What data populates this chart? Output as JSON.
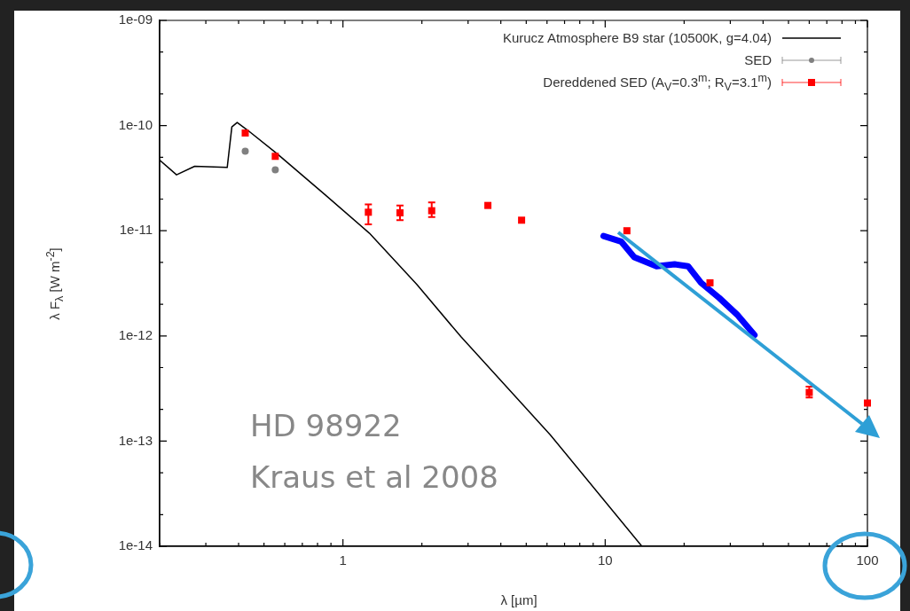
{
  "chart_data": {
    "type": "scatter",
    "xlabel": "λ [µm]",
    "ylabel": "λ F$_{λ}$ [W m$^{-2}$]",
    "log": "xy",
    "legend": "top right",
    "grid": false,
    "xlim": [
      0.2,
      100
    ],
    "xticks": [
      {
        "value": 0.2,
        "label": null
      },
      {
        "value": 0.3,
        "label": null
      },
      {
        "value": 0.4,
        "label": null
      },
      {
        "value": 0.5,
        "label": null
      },
      {
        "value": 0.6,
        "label": null
      },
      {
        "value": 0.7,
        "label": null
      },
      {
        "value": 0.8,
        "label": null
      },
      {
        "value": 0.9,
        "label": null
      },
      1,
      {
        "value": 2,
        "label": null
      },
      {
        "value": 3,
        "label": null
      },
      {
        "value": 4,
        "label": null
      },
      {
        "value": 5,
        "label": null
      },
      {
        "value": 6,
        "label": null
      },
      {
        "value": 7,
        "label": null
      },
      {
        "value": 8,
        "label": null
      },
      {
        "value": 9,
        "label": null
      },
      10,
      {
        "value": 20,
        "label": null
      },
      {
        "value": 30,
        "label": null
      },
      {
        "value": 40,
        "label": null
      },
      {
        "value": 50,
        "label": null
      },
      {
        "value": 60,
        "label": null
      },
      {
        "value": 70,
        "label": null
      },
      {
        "value": 80,
        "label": null
      },
      {
        "value": 90,
        "label": null
      },
      100
    ],
    "ylim": [
      1e-14,
      1e-09
    ],
    "yticks": [
      {
        "value": 1e-14,
        "label": "1e-14"
      },
      {
        "value": 2e-14,
        "label": null
      },
      {
        "value": 5e-14,
        "label": null
      },
      {
        "value": 1e-13,
        "label": "1e-13"
      },
      {
        "value": 2e-13,
        "label": null
      },
      {
        "value": 5e-13,
        "label": null
      },
      {
        "value": 1e-12,
        "label": "1e-12"
      },
      {
        "value": 2e-12,
        "label": null
      },
      {
        "value": 5e-12,
        "label": null
      },
      {
        "value": 1e-11,
        "label": "1e-11"
      },
      {
        "value": 2e-11,
        "label": null
      },
      {
        "value": 5e-11,
        "label": null
      },
      {
        "value": 1e-10,
        "label": "1e-10"
      },
      {
        "value": 2e-10,
        "label": null
      },
      {
        "value": 5e-10,
        "label": null
      },
      {
        "value": 1e-09,
        "label": "1e-09"
      }
    ],
    "series": [
      {
        "name": "Kurucz Atmosphere B9 star (10500K, g=4.04)",
        "type": "line",
        "color": "#000000",
        "marker": "none",
        "x": [
          0.2,
          0.232,
          0.272,
          0.362,
          0.377,
          0.395,
          0.434,
          0.561,
          0.855,
          1.26,
          1.91,
          2.82,
          6.17,
          13.8
        ],
        "values": [
          4.7e-11,
          3.4e-11,
          4.1e-11,
          4e-11,
          9.7e-11,
          1.07e-10,
          9e-11,
          5.4e-11,
          2.2e-11,
          9.5e-12,
          3.1e-12,
          9.8e-13,
          1.15e-13,
          1e-14
        ]
      },
      {
        "name": "SED",
        "color": "#808080",
        "marker": "circle",
        "x": [
          0.424,
          0.552
        ],
        "values": [
          5.7e-11,
          3.8e-11
        ]
      },
      {
        "name": "Dereddened SED (A$_{V}$=0.3$^{m}$; R$_{V}$=3.1$^{m}$)",
        "color": "#ff0000",
        "marker": "square",
        "x": [
          0.424,
          0.552,
          1.25,
          1.65,
          2.18,
          3.57,
          4.8,
          12.1,
          25.1,
          60,
          100
        ],
        "values": [
          8.5e-11,
          5.1e-11,
          1.5e-11,
          1.48e-11,
          1.55e-11,
          1.74e-11,
          1.26e-11,
          1e-11,
          3.2e-12,
          2.9e-13,
          2.3e-13
        ],
        "errors": [
          null,
          null,
          [
            1.15e-11,
            1.78e-11
          ],
          [
            1.26e-11,
            1.74e-11
          ],
          [
            1.35e-11,
            1.86e-11
          ],
          null,
          null,
          null,
          null,
          [
            2.6e-13,
            3.3e-13
          ],
          null
        ]
      },
      {
        "type": "line",
        "color": "#0000ff",
        "marker": "none",
        "x": [
          9.85,
          11.5,
          12.9,
          15.7,
          18.4,
          20.7,
          23.2,
          27.2,
          31.8,
          37.1
        ],
        "values": [
          8.9e-12,
          7.9e-12,
          5.6e-12,
          4.6e-12,
          4.8e-12,
          4.6e-12,
          3.2e-12,
          2.3e-12,
          1.6e-12,
          1.02e-12
        ]
      }
    ],
    "annotations": [
      "HD 98922",
      "Kraus et al 2008"
    ]
  }
}
